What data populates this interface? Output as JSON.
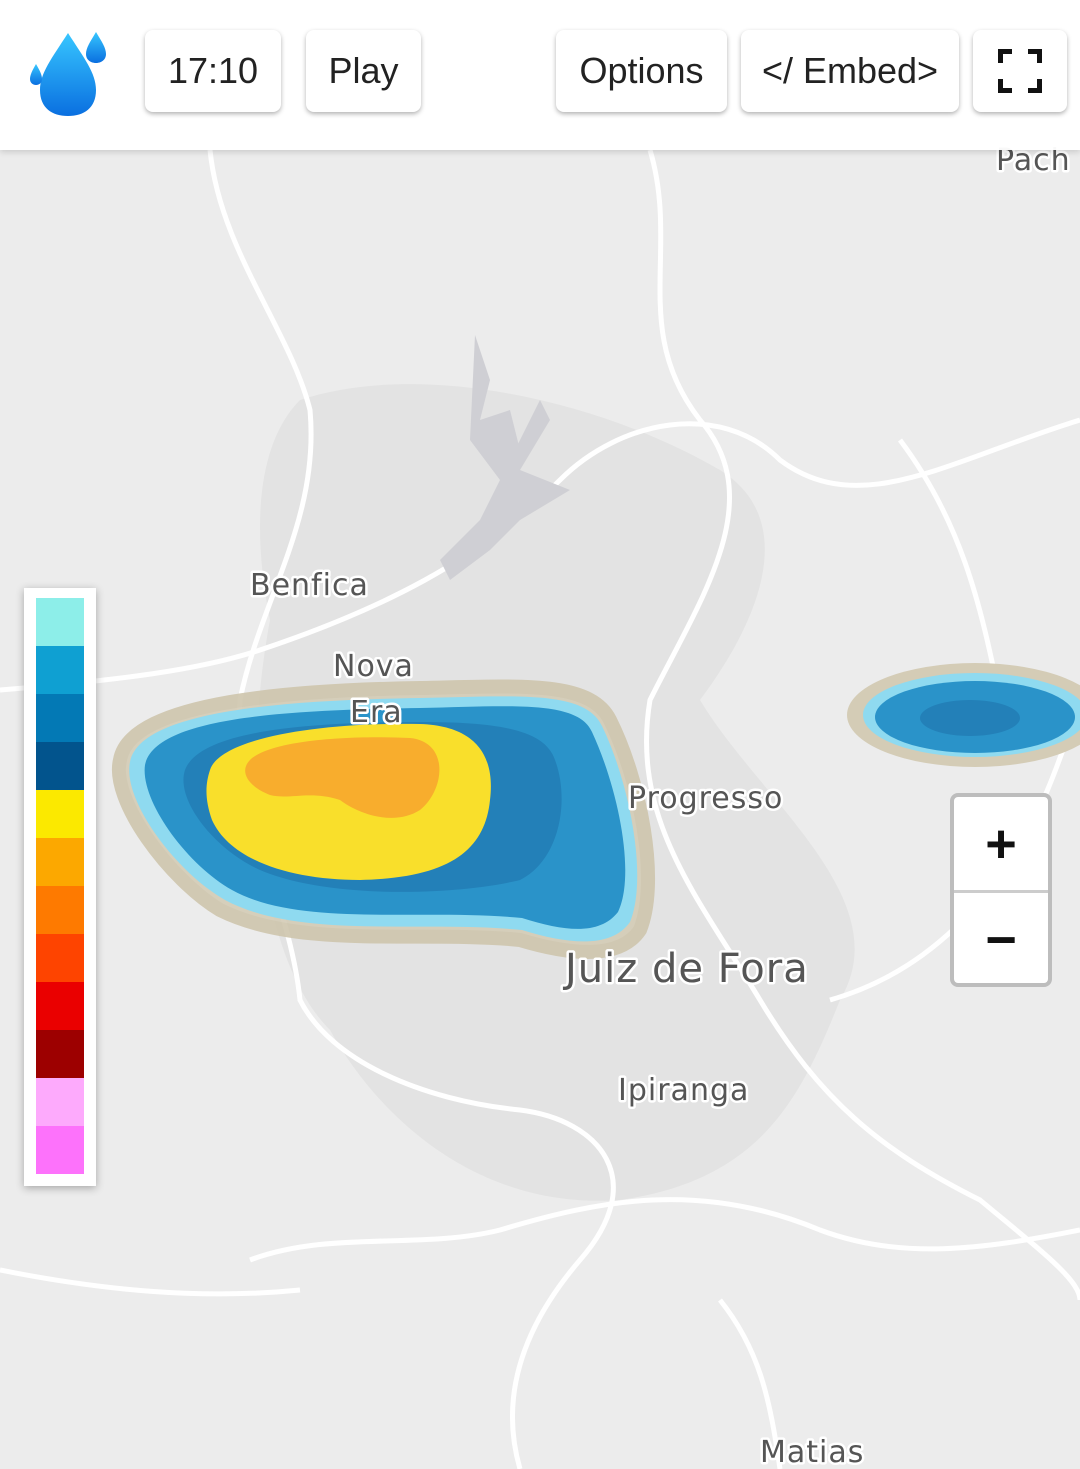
{
  "toolbar": {
    "time": "17:10",
    "play": "Play",
    "options": "Options",
    "embed": "</ Embed>"
  },
  "zoom": {
    "in": "+",
    "out": "−"
  },
  "legend": {
    "colors": [
      "#8deee9",
      "#0fa0d2",
      "#0379b5",
      "#02548d",
      "#fbe900",
      "#fca800",
      "#fe7a00",
      "#fe4400",
      "#ea0000",
      "#9d0000",
      "#fdaafc",
      "#fd72fb"
    ]
  },
  "places": [
    "Pach",
    "Benfica",
    "Nova",
    "Era",
    "Progresso",
    "Juiz de Fora",
    "Ipiranga",
    "Matias"
  ]
}
